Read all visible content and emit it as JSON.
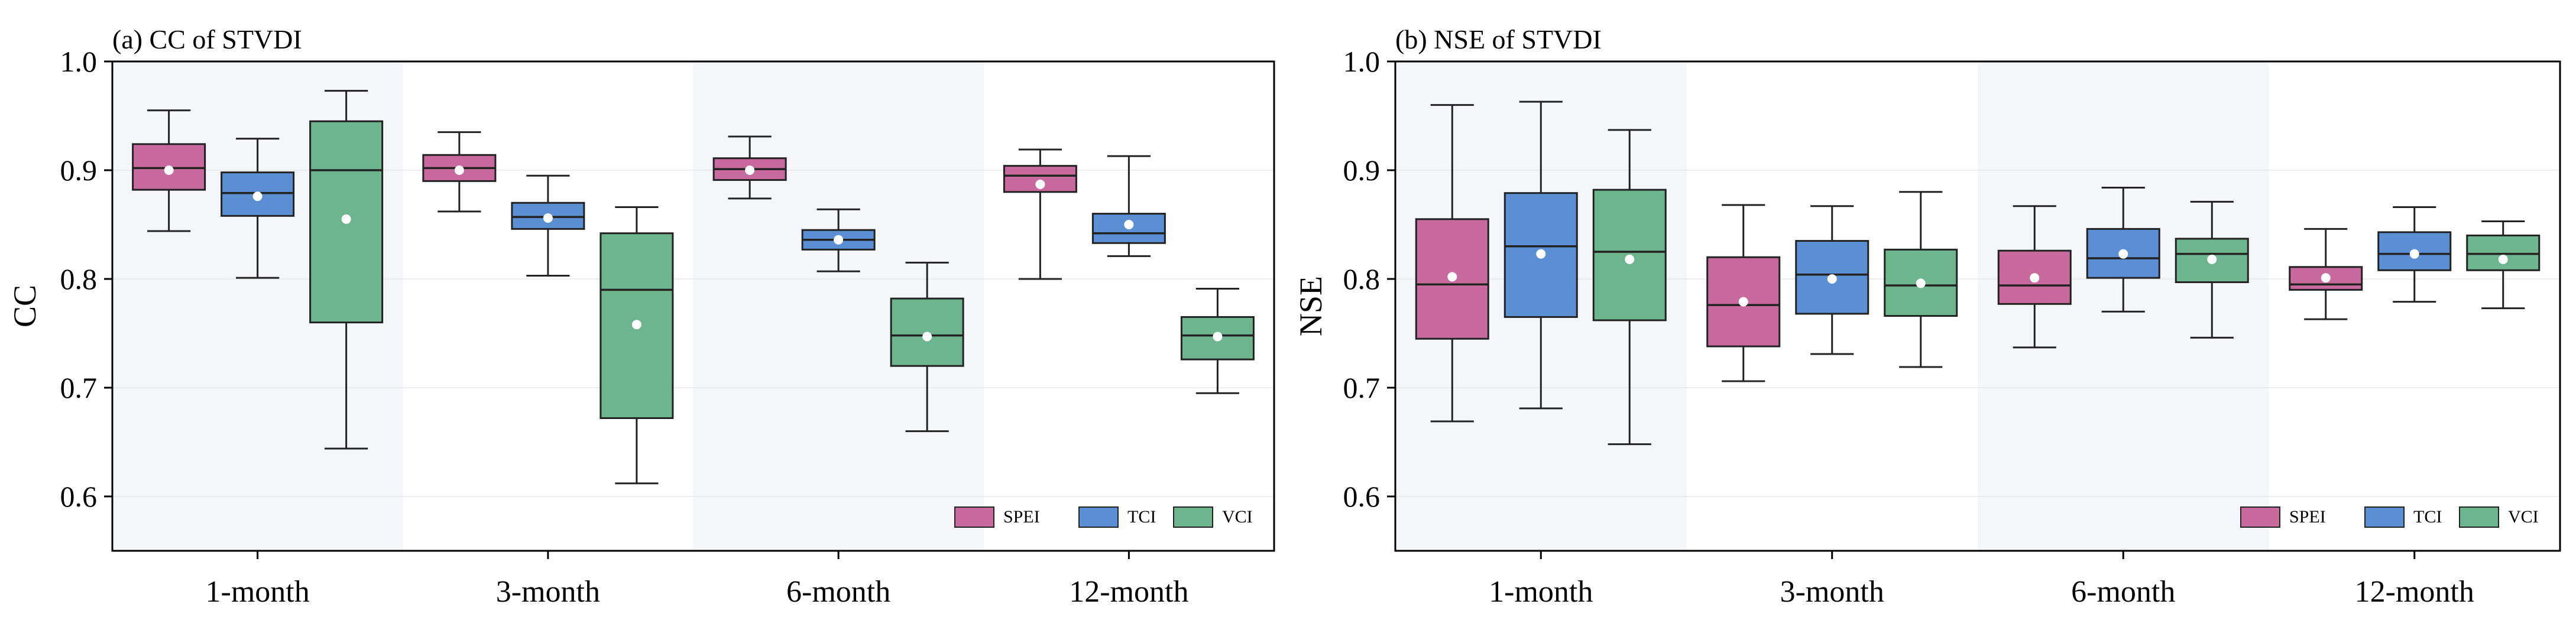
{
  "chart_data": [
    {
      "type": "box",
      "title": "(a) CC of STVDI",
      "xlabel": "",
      "ylabel": "CC",
      "ylim": [
        0.55,
        1.0
      ],
      "yticks": [
        0.6,
        0.7,
        0.8,
        0.9,
        1.0
      ],
      "ytick_labels": [
        "0.6",
        "0.7",
        "0.8",
        "0.9",
        "1.0"
      ],
      "grid": true,
      "legend_position": "bottom-right",
      "shaded_groups": [
        0,
        2
      ],
      "categories": [
        "1-month",
        "3-month",
        "6-month",
        "12-month"
      ],
      "series": [
        {
          "name": "SPEI",
          "color": "#c86a9e",
          "boxes": [
            {
              "whislo": 0.844,
              "q1": 0.882,
              "med": 0.902,
              "q3": 0.924,
              "whishi": 0.955,
              "mean": 0.9
            },
            {
              "whislo": 0.862,
              "q1": 0.89,
              "med": 0.902,
              "q3": 0.914,
              "whishi": 0.935,
              "mean": 0.9
            },
            {
              "whislo": 0.874,
              "q1": 0.891,
              "med": 0.901,
              "q3": 0.911,
              "whishi": 0.931,
              "mean": 0.9
            },
            {
              "whislo": 0.8,
              "q1": 0.88,
              "med": 0.895,
              "q3": 0.904,
              "whishi": 0.919,
              "mean": 0.887
            }
          ]
        },
        {
          "name": "TCI",
          "color": "#5b8fd3",
          "boxes": [
            {
              "whislo": 0.801,
              "q1": 0.858,
              "med": 0.879,
              "q3": 0.898,
              "whishi": 0.929,
              "mean": 0.876
            },
            {
              "whislo": 0.803,
              "q1": 0.846,
              "med": 0.857,
              "q3": 0.87,
              "whishi": 0.895,
              "mean": 0.856
            },
            {
              "whislo": 0.807,
              "q1": 0.827,
              "med": 0.836,
              "q3": 0.845,
              "whishi": 0.864,
              "mean": 0.836
            },
            {
              "whislo": 0.821,
              "q1": 0.833,
              "med": 0.842,
              "q3": 0.86,
              "whishi": 0.913,
              "mean": 0.85
            }
          ]
        },
        {
          "name": "VCI",
          "color": "#6db58f",
          "boxes": [
            {
              "whislo": 0.644,
              "q1": 0.76,
              "med": 0.9,
              "q3": 0.945,
              "whishi": 0.973,
              "mean": 0.855
            },
            {
              "whislo": 0.612,
              "q1": 0.672,
              "med": 0.79,
              "q3": 0.842,
              "whishi": 0.866,
              "mean": 0.758
            },
            {
              "whislo": 0.66,
              "q1": 0.72,
              "med": 0.748,
              "q3": 0.782,
              "whishi": 0.815,
              "mean": 0.747
            },
            {
              "whislo": 0.695,
              "q1": 0.726,
              "med": 0.748,
              "q3": 0.765,
              "whishi": 0.791,
              "mean": 0.747
            }
          ]
        }
      ]
    },
    {
      "type": "box",
      "title": "(b) NSE of STVDI",
      "xlabel": "",
      "ylabel": "NSE",
      "ylim": [
        0.55,
        1.0
      ],
      "yticks": [
        0.6,
        0.7,
        0.8,
        0.9,
        1.0
      ],
      "ytick_labels": [
        "0.6",
        "0.7",
        "0.8",
        "0.9",
        "1.0"
      ],
      "grid": true,
      "legend_position": "bottom-right",
      "shaded_groups": [
        0,
        2
      ],
      "categories": [
        "1-month",
        "3-month",
        "6-month",
        "12-month"
      ],
      "series": [
        {
          "name": "SPEI",
          "color": "#c86a9e",
          "boxes": [
            {
              "whislo": 0.669,
              "q1": 0.745,
              "med": 0.795,
              "q3": 0.855,
              "whishi": 0.96,
              "mean": 0.802
            },
            {
              "whislo": 0.706,
              "q1": 0.738,
              "med": 0.776,
              "q3": 0.82,
              "whishi": 0.868,
              "mean": 0.779
            },
            {
              "whislo": 0.737,
              "q1": 0.777,
              "med": 0.794,
              "q3": 0.826,
              "whishi": 0.867,
              "mean": 0.801
            },
            {
              "whislo": 0.763,
              "q1": 0.79,
              "med": 0.795,
              "q3": 0.811,
              "whishi": 0.846,
              "mean": 0.801
            }
          ]
        },
        {
          "name": "TCI",
          "color": "#5b8fd3",
          "boxes": [
            {
              "whislo": 0.681,
              "q1": 0.765,
              "med": 0.83,
              "q3": 0.879,
              "whishi": 0.963,
              "mean": 0.823
            },
            {
              "whislo": 0.731,
              "q1": 0.768,
              "med": 0.804,
              "q3": 0.835,
              "whishi": 0.867,
              "mean": 0.8
            },
            {
              "whislo": 0.77,
              "q1": 0.801,
              "med": 0.819,
              "q3": 0.846,
              "whishi": 0.884,
              "mean": 0.823
            },
            {
              "whislo": 0.779,
              "q1": 0.808,
              "med": 0.823,
              "q3": 0.843,
              "whishi": 0.866,
              "mean": 0.823
            }
          ]
        },
        {
          "name": "VCI",
          "color": "#6db58f",
          "boxes": [
            {
              "whislo": 0.648,
              "q1": 0.762,
              "med": 0.825,
              "q3": 0.882,
              "whishi": 0.937,
              "mean": 0.818
            },
            {
              "whislo": 0.719,
              "q1": 0.766,
              "med": 0.794,
              "q3": 0.827,
              "whishi": 0.88,
              "mean": 0.796
            },
            {
              "whislo": 0.746,
              "q1": 0.797,
              "med": 0.823,
              "q3": 0.837,
              "whishi": 0.871,
              "mean": 0.818
            },
            {
              "whislo": 0.773,
              "q1": 0.808,
              "med": 0.823,
              "q3": 0.84,
              "whishi": 0.853,
              "mean": 0.818
            }
          ]
        }
      ]
    }
  ]
}
